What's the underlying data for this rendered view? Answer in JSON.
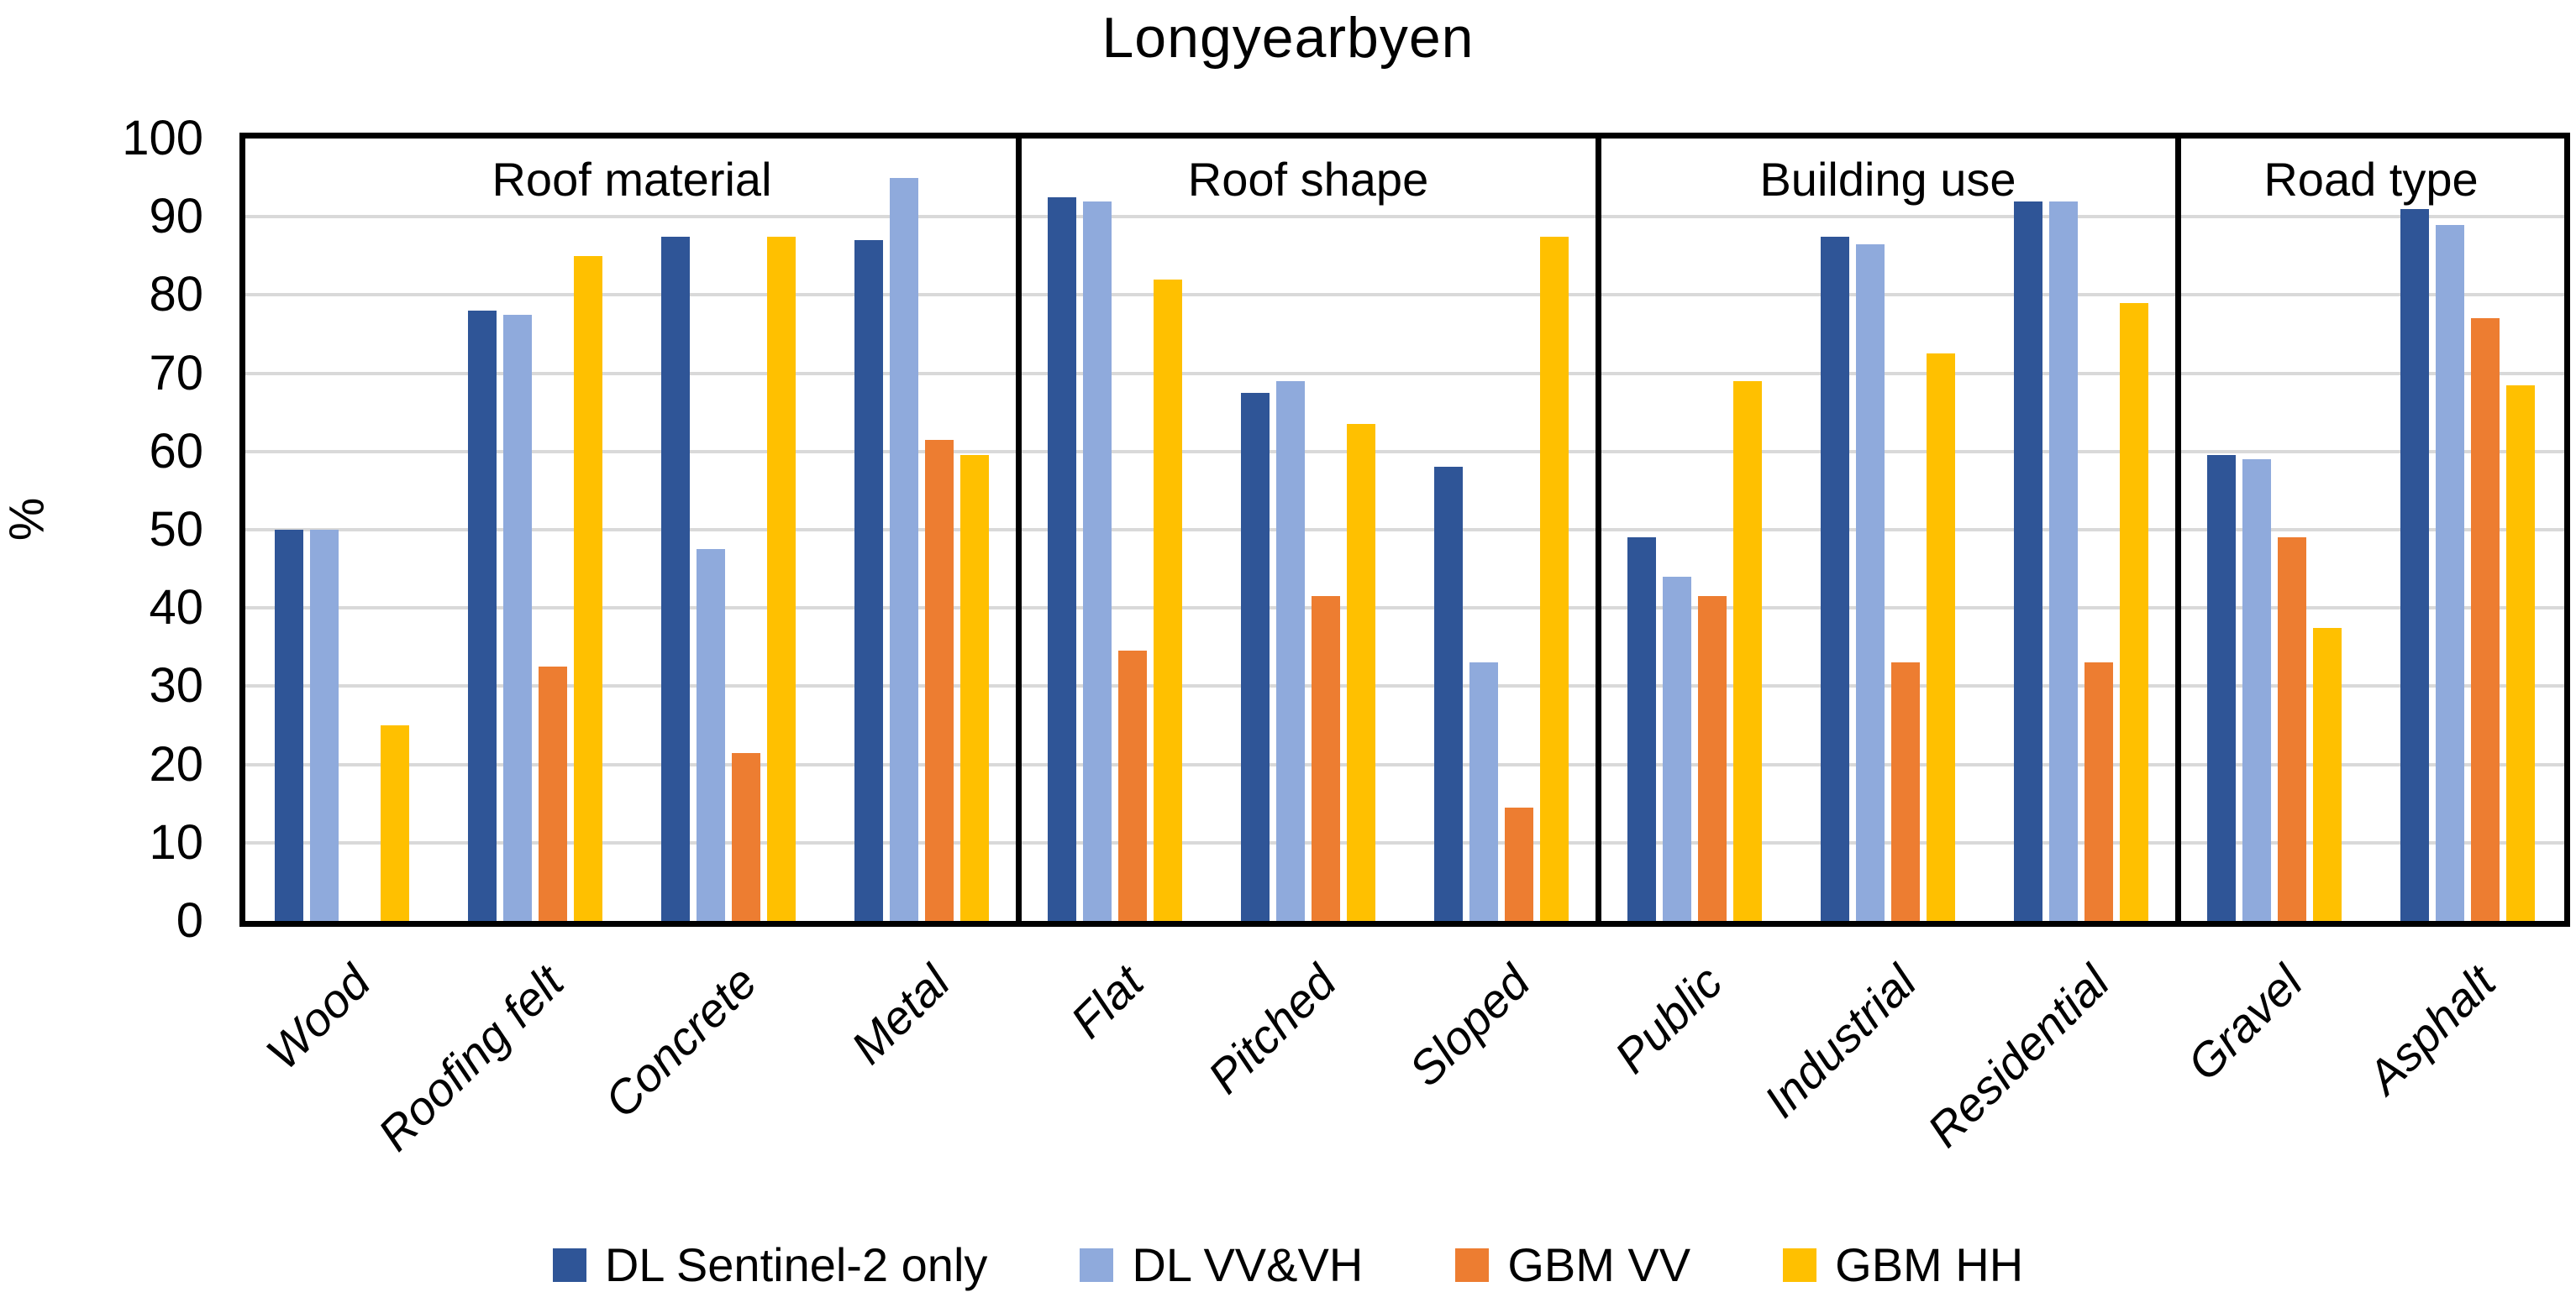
{
  "chart_data": {
    "type": "bar",
    "title": "Longyearbyen",
    "ylabel": "%",
    "ylim": [
      0,
      100
    ],
    "ytick_labels": [
      "0",
      "10",
      "20",
      "30",
      "40",
      "50",
      "60",
      "70",
      "80",
      "90",
      "100"
    ],
    "grid": true,
    "legend_position": "bottom",
    "categories": [
      "Wood",
      "Roofing felt",
      "Concrete",
      "Metal",
      "Flat",
      "Pitched",
      "Sloped",
      "Public",
      "Industrial",
      "Residential",
      "Gravel",
      "Asphalt"
    ],
    "groups": [
      {
        "label": "Roof material",
        "start": 0,
        "end": 4
      },
      {
        "label": "Roof shape",
        "start": 4,
        "end": 7
      },
      {
        "label": "Building use",
        "start": 7,
        "end": 10
      },
      {
        "label": "Road type",
        "start": 10,
        "end": 12
      }
    ],
    "group_divider_indices": [
      4,
      7,
      10
    ],
    "series": [
      {
        "name": "DL Sentinel-2 only",
        "color": "#2F5597",
        "values": [
          50,
          78,
          87.5,
          87,
          92.5,
          67.5,
          58,
          49,
          87.5,
          92,
          59.5,
          91
        ]
      },
      {
        "name": "DL VV&VH",
        "color": "#8FAADC",
        "values": [
          50,
          77.5,
          47.5,
          95,
          92,
          69,
          33,
          44,
          86.5,
          92,
          59,
          89
        ]
      },
      {
        "name": "GBM VV",
        "color": "#ED7D31",
        "values": [
          null,
          32.5,
          21.5,
          61.5,
          34.5,
          41.5,
          14.5,
          41.5,
          33,
          33,
          49,
          77
        ]
      },
      {
        "name": "GBM HH",
        "color": "#FFC000",
        "values": [
          25,
          85,
          87.5,
          59.5,
          82,
          63.5,
          87.5,
          69,
          72.5,
          79,
          37.5,
          68.5
        ]
      }
    ],
    "colors": {
      "gridline": "#d9d9d9",
      "axis": "#000000",
      "text": "#000000"
    }
  }
}
